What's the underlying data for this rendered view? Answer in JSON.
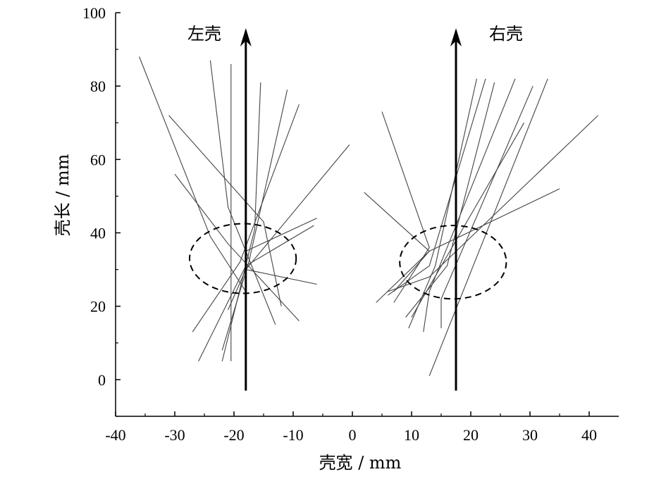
{
  "chart_data": {
    "type": "line",
    "title": "",
    "xlabel": "壳宽 / mm",
    "ylabel": "壳长 / mm",
    "xlim": [
      -40,
      45
    ],
    "ylim": [
      -10,
      100
    ],
    "xticks": [
      -40,
      -30,
      -20,
      -10,
      0,
      10,
      20,
      30,
      40
    ],
    "yticks": [
      0,
      20,
      40,
      60,
      80,
      100
    ],
    "xtick_labels": [
      "-40",
      "-30",
      "-20",
      "-10",
      "0",
      "10",
      "20",
      "30",
      "40"
    ],
    "ytick_labels": [
      "0",
      "20",
      "40",
      "60",
      "80",
      "100"
    ],
    "grid": false,
    "legend": "none",
    "arrows": [
      {
        "label": "左壳",
        "x": -18,
        "y_start": -3,
        "y_end": 95
      },
      {
        "label": "右壳",
        "x": 17.5,
        "y_start": -3,
        "y_end": 95
      }
    ],
    "ellipses": [
      {
        "cx": -18.5,
        "cy": 33,
        "rx": 9,
        "ry": 9.5,
        "style": "dashed"
      },
      {
        "cx": 17,
        "cy": 32,
        "rx": 9,
        "ry": 10,
        "style": "dashed"
      }
    ],
    "series": [
      {
        "points": [
          [
            -36,
            88
          ],
          [
            -24,
            39
          ],
          [
            -18,
            24
          ]
        ]
      },
      {
        "points": [
          [
            -31,
            72
          ],
          [
            -15,
            43
          ],
          [
            -12,
            20
          ]
        ]
      },
      {
        "points": [
          [
            -30,
            56
          ],
          [
            -21,
            37
          ],
          [
            -9,
            16
          ]
        ]
      },
      {
        "points": [
          [
            -24,
            87
          ],
          [
            -21,
            47
          ],
          [
            -13,
            15
          ]
        ]
      },
      {
        "points": [
          [
            -20.5,
            86
          ],
          [
            -20.5,
            5
          ]
        ]
      },
      {
        "points": [
          [
            -15.5,
            81
          ],
          [
            -16.5,
            41
          ],
          [
            -22,
            5
          ]
        ]
      },
      {
        "points": [
          [
            -11,
            79
          ],
          [
            -17.5,
            32
          ],
          [
            -22,
            8
          ]
        ]
      },
      {
        "points": [
          [
            -9,
            75
          ],
          [
            -19,
            32
          ],
          [
            -27,
            13
          ]
        ]
      },
      {
        "points": [
          [
            -0.5,
            64
          ],
          [
            -18,
            30
          ],
          [
            -21,
            19
          ]
        ]
      },
      {
        "points": [
          [
            -6.5,
            42
          ],
          [
            -18,
            31
          ],
          [
            -26,
            5
          ]
        ]
      },
      {
        "points": [
          [
            -6,
            44
          ],
          [
            -18,
            35
          ]
        ]
      },
      {
        "points": [
          [
            -18,
            30
          ],
          [
            -6,
            26
          ]
        ]
      },
      {
        "points": [
          [
            5,
            73
          ],
          [
            13,
            36
          ],
          [
            7,
            21
          ]
        ]
      },
      {
        "points": [
          [
            2,
            51
          ],
          [
            13,
            35
          ],
          [
            7,
            24
          ]
        ]
      },
      {
        "points": [
          [
            22.5,
            82
          ],
          [
            13,
            31
          ],
          [
            6,
            23
          ]
        ]
      },
      {
        "points": [
          [
            24,
            81
          ],
          [
            16,
            31
          ],
          [
            9,
            17
          ]
        ]
      },
      {
        "points": [
          [
            27.5,
            82
          ],
          [
            13,
            24
          ],
          [
            12,
            13
          ]
        ]
      },
      {
        "points": [
          [
            30.5,
            80
          ],
          [
            15,
            22
          ],
          [
            15,
            14
          ]
        ]
      },
      {
        "points": [
          [
            29,
            70
          ],
          [
            10,
            17
          ]
        ]
      },
      {
        "points": [
          [
            33,
            82
          ],
          [
            13,
            1
          ]
        ]
      },
      {
        "points": [
          [
            41.5,
            72
          ],
          [
            13,
            28
          ],
          [
            6,
            24
          ]
        ]
      },
      {
        "points": [
          [
            35,
            52
          ],
          [
            13,
            35
          ],
          [
            4,
            21
          ]
        ]
      },
      {
        "points": [
          [
            21,
            82
          ],
          [
            14,
            31
          ],
          [
            9.5,
            14
          ]
        ]
      }
    ]
  }
}
